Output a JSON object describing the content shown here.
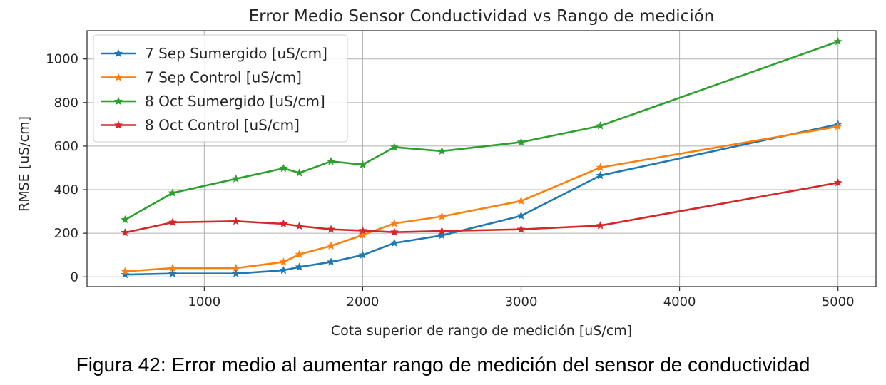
{
  "caption": "Figura 42: Error medio al aumentar rango de medición del sensor de conductividad",
  "chart_data": {
    "type": "line",
    "title": "Error Medio Sensor Conductividad vs Rango de medición",
    "xlabel": "Cota superior de rango de medición [uS/cm]",
    "ylabel": "RMSE [uS/cm]",
    "xlim": [
      260,
      5240
    ],
    "ylim": [
      -45,
      1130
    ],
    "xticks": [
      1000,
      2000,
      3000,
      4000,
      5000
    ],
    "yticks": [
      0,
      200,
      400,
      600,
      800,
      1000
    ],
    "grid": true,
    "legend_position": "top-left",
    "marker": "star",
    "x": [
      500,
      800,
      1200,
      1500,
      1600,
      1800,
      2000,
      2200,
      2500,
      3000,
      3500,
      5000
    ],
    "series": [
      {
        "name": "7 Sep Sumergido [uS/cm]",
        "color": "#1f77b4",
        "values": [
          10,
          15,
          15,
          30,
          45,
          68,
          100,
          155,
          190,
          280,
          465,
          700
        ]
      },
      {
        "name": "7 Sep Control [uS/cm]",
        "color": "#ff7f0e",
        "values": [
          25,
          40,
          40,
          68,
          103,
          142,
          192,
          245,
          277,
          348,
          502,
          690
        ]
      },
      {
        "name": "8 Oct Sumergido [uS/cm]",
        "color": "#2ca02c",
        "values": [
          262,
          385,
          450,
          498,
          477,
          530,
          515,
          595,
          577,
          618,
          693,
          1080
        ]
      },
      {
        "name": "8 Oct Control [uS/cm]",
        "color": "#d62728",
        "values": [
          203,
          250,
          255,
          243,
          233,
          218,
          212,
          205,
          210,
          218,
          235,
          432
        ]
      }
    ]
  }
}
